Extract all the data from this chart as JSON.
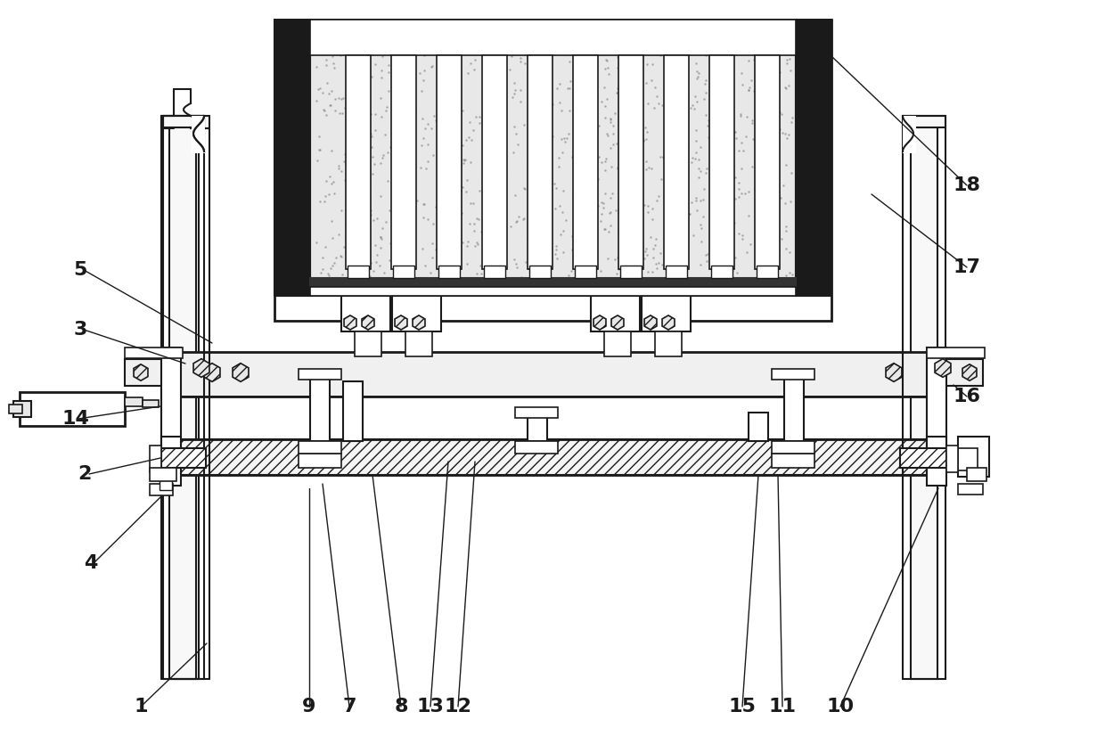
{
  "bg_color": "#ffffff",
  "lc": "#1a1a1a",
  "lw": 1.5,
  "label_positions": [
    [
      "1",
      158,
      793
    ],
    [
      "2",
      95,
      532
    ],
    [
      "3",
      90,
      370
    ],
    [
      "4",
      102,
      632
    ],
    [
      "5",
      90,
      303
    ],
    [
      "7",
      392,
      793
    ],
    [
      "8",
      450,
      793
    ],
    [
      "9",
      347,
      793
    ],
    [
      "10",
      943,
      793
    ],
    [
      "11",
      878,
      793
    ],
    [
      "12",
      514,
      793
    ],
    [
      "13",
      483,
      793
    ],
    [
      "14",
      85,
      470
    ],
    [
      "15",
      833,
      793
    ],
    [
      "16",
      1085,
      445
    ],
    [
      "17",
      1085,
      300
    ],
    [
      "18",
      1085,
      208
    ]
  ],
  "leader_lines": [
    [
      "1",
      232,
      722,
      158,
      793
    ],
    [
      "2",
      180,
      514,
      100,
      532
    ],
    [
      "3",
      208,
      408,
      94,
      370
    ],
    [
      "4",
      180,
      558,
      105,
      632
    ],
    [
      "5",
      238,
      385,
      94,
      303
    ],
    [
      "7",
      362,
      543,
      392,
      793
    ],
    [
      "8",
      418,
      533,
      450,
      793
    ],
    [
      "9",
      347,
      548,
      347,
      793
    ],
    [
      "10",
      1053,
      548,
      943,
      793
    ],
    [
      "11",
      873,
      533,
      878,
      793
    ],
    [
      "12",
      533,
      518,
      514,
      793
    ],
    [
      "13",
      503,
      518,
      483,
      793
    ],
    [
      "14",
      180,
      456,
      88,
      470
    ],
    [
      "15",
      851,
      533,
      833,
      793
    ],
    [
      "16",
      1070,
      432,
      1085,
      445
    ],
    [
      "17",
      978,
      218,
      1085,
      300
    ],
    [
      "18",
      933,
      63,
      1085,
      208
    ]
  ]
}
